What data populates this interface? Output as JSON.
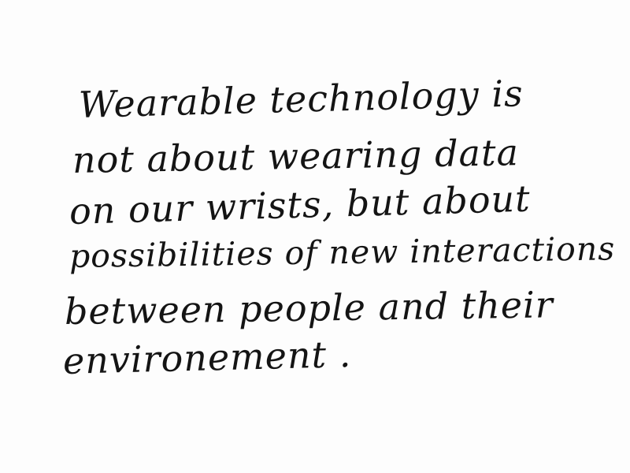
{
  "note": {
    "lines": [
      "Wearable technology is",
      "not about wearing data",
      "on our wrists, but about",
      "possibilities of new interactions",
      "between people and their",
      "environement ."
    ]
  }
}
